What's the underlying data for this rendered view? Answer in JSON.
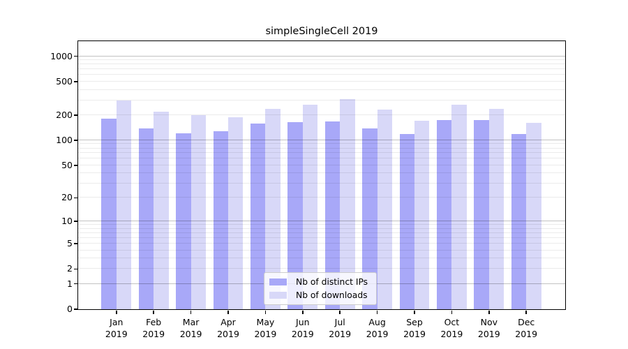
{
  "figure": {
    "title": "simpleSingleCell 2019",
    "background": "#ffffff"
  },
  "chart_data": {
    "type": "bar",
    "title": "simpleSingleCell 2019",
    "categories": [
      "Jan",
      "Feb",
      "Mar",
      "Apr",
      "May",
      "Jun",
      "Jul",
      "Aug",
      "Sep",
      "Oct",
      "Nov",
      "Dec"
    ],
    "x_year_line": "2019",
    "series": [
      {
        "name": "Nb of distinct IPs",
        "color": "#a8a8f8",
        "values": [
          181,
          138,
          120,
          128,
          158,
          166,
          169,
          138,
          118,
          174,
          174,
          119
        ]
      },
      {
        "name": "Nb of downloads",
        "color": "#d8d8f8",
        "values": [
          296,
          221,
          199,
          189,
          236,
          267,
          312,
          234,
          170,
          267,
          238,
          162
        ]
      }
    ],
    "xlabel": "",
    "ylabel": "",
    "yscale": "log1p",
    "yticks": [
      0,
      1,
      2,
      5,
      10,
      20,
      50,
      100,
      200,
      500,
      1000
    ],
    "ylim": [
      0,
      1500
    ],
    "grid": "horizontal minor+major",
    "legend_position": "inside-bottom-center"
  },
  "colors": {
    "bar_distinct_ips": "#a8a8f8",
    "bar_downloads": "#d8d8f8",
    "grid_minor": "rgba(0,0,0,0.08)",
    "grid_major": "rgba(0,0,0,0.24)",
    "spine": "#000000",
    "legend_border": "#cccccc",
    "text": "#000000"
  }
}
